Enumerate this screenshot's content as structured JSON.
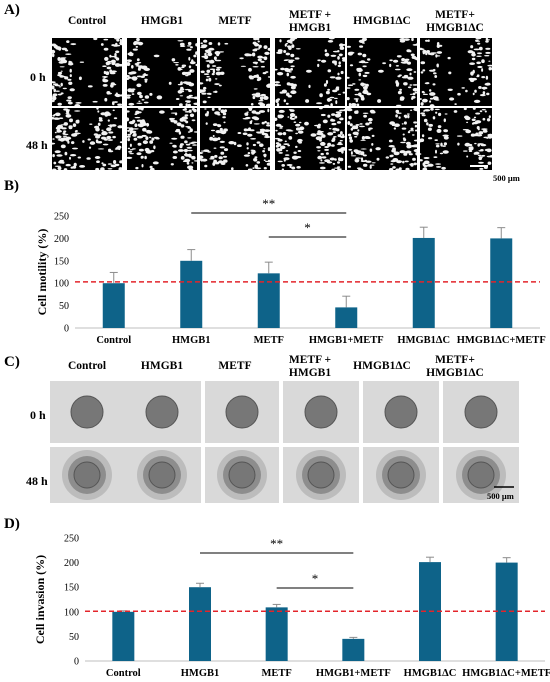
{
  "panels": {
    "a": "A)",
    "b": "B)",
    "c": "C)",
    "d": "D)"
  },
  "panel_a": {
    "columns": [
      "Control",
      "HMGB1",
      "METF",
      "METF +\nHMGB1",
      "HMGB1ΔC",
      "METF+\nHMGB1ΔC"
    ],
    "rows": [
      "0 h",
      "48 h"
    ],
    "scale_bar": "500 μm"
  },
  "panel_c": {
    "columns": [
      "Control",
      "HMGB1",
      "METF",
      "METF +\nHMGB1",
      "HMGB1ΔC",
      "METF+\nHMGB1ΔC"
    ],
    "rows": [
      "0 h",
      "48 h"
    ],
    "scale_bar": "500 μm"
  },
  "chart_data": [
    {
      "type": "bar",
      "ylabel": "Cell motility (%)",
      "categories": [
        "Control",
        "HMGB1",
        "METF",
        "HMGB1+METF",
        "HMGB1ΔC",
        "HMGB1ΔC+METF"
      ],
      "values": [
        100,
        150,
        122,
        46,
        201,
        200
      ],
      "errors": [
        24,
        25,
        25,
        25,
        24,
        24
      ],
      "ylim": [
        0,
        250
      ],
      "yticks": [
        0,
        50,
        100,
        150,
        200,
        250
      ],
      "reference_line": 103,
      "bar_color": "#0e6389",
      "reference_color": "#e3242b",
      "significance": [
        {
          "from": 1,
          "to": 3,
          "label": "**"
        },
        {
          "from": 2,
          "to": 3,
          "label": "*"
        }
      ]
    },
    {
      "type": "bar",
      "ylabel": "Cell invasion (%)",
      "categories": [
        "Control",
        "HMGB1",
        "METF",
        "HMGB1+METF",
        "HMGB1ΔC",
        "HMGB1ΔC+METF"
      ],
      "values": [
        100,
        150,
        109,
        45,
        201,
        200
      ],
      "errors": [
        2,
        8,
        6,
        3,
        10,
        10
      ],
      "ylim": [
        0,
        250
      ],
      "yticks": [
        0,
        50,
        100,
        150,
        200,
        250
      ],
      "reference_line": 101,
      "bar_color": "#0e6389",
      "reference_color": "#e3242b",
      "significance": [
        {
          "from": 1,
          "to": 3,
          "label": "**"
        },
        {
          "from": 2,
          "to": 3,
          "label": "*"
        }
      ]
    }
  ]
}
